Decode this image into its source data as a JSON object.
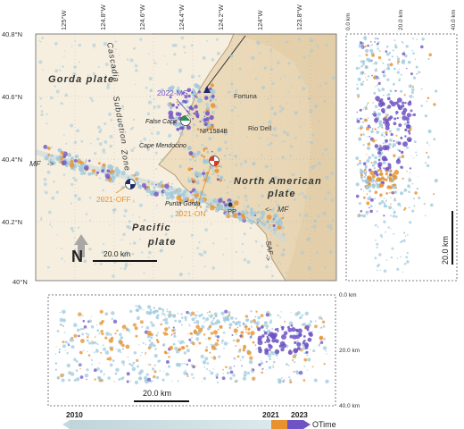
{
  "map": {
    "top_ticks": [
      "125°W",
      "124.8°W",
      "124.6°W",
      "124.4°W",
      "124.2°W",
      "124°W",
      "123.8°W"
    ],
    "lat_ticks": [
      "40.8°N",
      "40.6°N",
      "40.4°N",
      "40.2°N",
      "40°N"
    ],
    "plates": {
      "gorda": "Gorda plate",
      "pacific": "Pacific\nplate",
      "north_american": "North American\nplate"
    },
    "cascadia": "Cascadia\nSubduction\nZone",
    "faults": {
      "mf_left": "MF",
      "mf_right": "MF",
      "saf": "SAF"
    },
    "places": {
      "fortuna": "Fortuna",
      "rio_dell": "Rio Dell",
      "false_cape": "False Cape",
      "cape_mendocino": "Cape Mendocino",
      "punta_gorda": "Punta Gorda",
      "pp": "PP",
      "station": "NP.1584B"
    },
    "events": {
      "ms": "2022-MS",
      "off": "2021-OFF",
      "on": "2021-ON"
    },
    "north": "N",
    "scale": "20.0 km",
    "colors": {
      "land": "#e9d8b9",
      "sea": "#f4ecdc",
      "seis_blue": "#9ec9dc",
      "event_2021": "#e9912e",
      "event_2022": "#6f52c4"
    }
  },
  "right_section": {
    "top_labels": [
      "0.0 km",
      "20.0 km",
      "40.0 km"
    ],
    "scale": "20.0 km"
  },
  "bottom_section": {
    "depth_labels": [
      "0.0 km",
      "20.0 km",
      "40.0 km"
    ],
    "scale": "20.0 km"
  },
  "timebar": {
    "labels": [
      "2010",
      "2021",
      "2023"
    ],
    "title": "OTime",
    "colors": [
      "#c3dadf",
      "#e9912e",
      "#6f52c4"
    ]
  }
}
